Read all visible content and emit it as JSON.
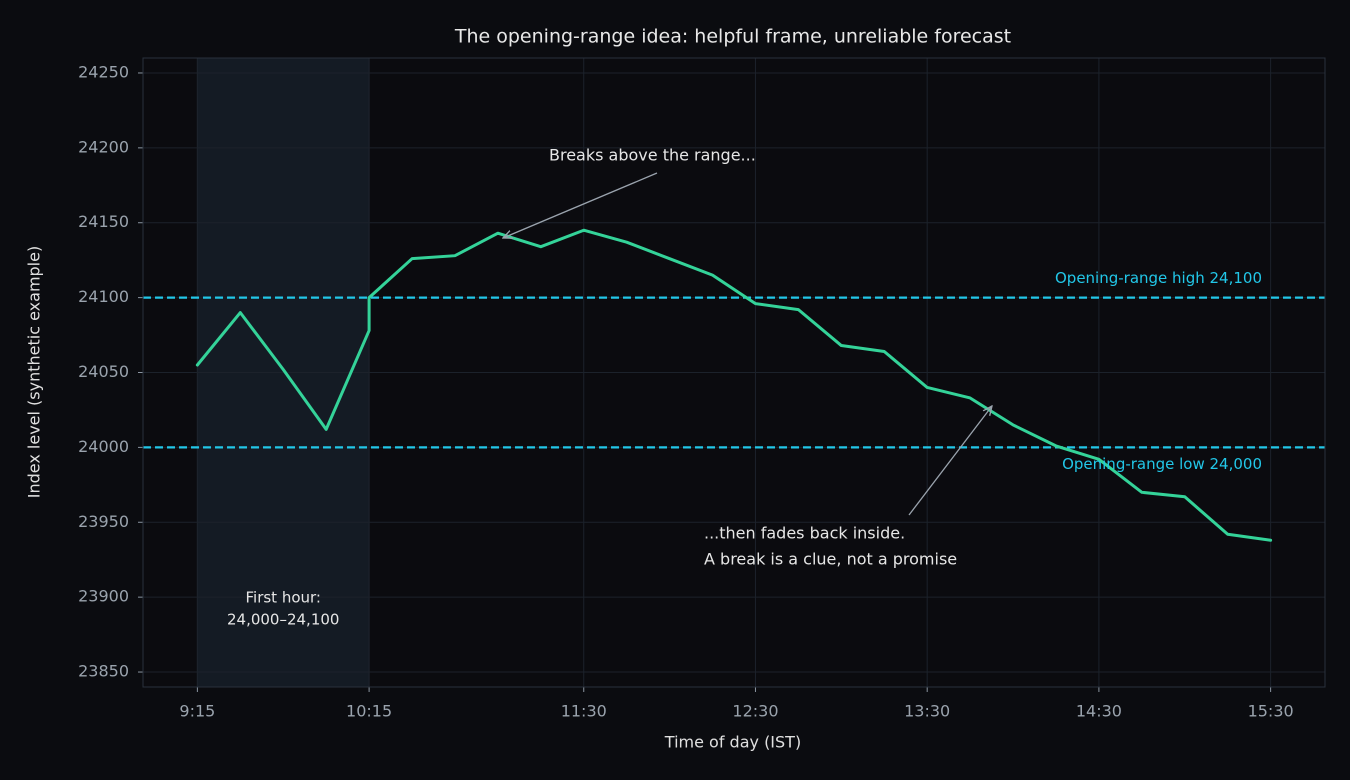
{
  "chart_data": {
    "type": "line",
    "title": "The opening-range idea: helpful frame, unreliable forecast",
    "x_label": "Time of day (IST)",
    "y_label": "Index level (synthetic example)",
    "x": [
      "9:15",
      "9:30",
      "9:45",
      "10:00",
      "10:15",
      "10:15",
      "10:30",
      "10:45",
      "11:00",
      "11:15",
      "11:30",
      "11:45",
      "12:00",
      "12:15",
      "12:30",
      "12:45",
      "13:00",
      "13:15",
      "13:30",
      "13:45",
      "14:00",
      "14:15",
      "14:30",
      "14:45",
      "15:00",
      "15:15",
      "15:30"
    ],
    "series": [
      {
        "name": "Index",
        "color": "#34d399",
        "values": [
          24055,
          24090,
          24052,
          24012,
          24078,
          24100,
          24126,
          24128,
          24143,
          24134,
          24145,
          24137,
          24126,
          24115,
          24096,
          24092,
          24068,
          24064,
          24040,
          24033,
          24015,
          24001,
          23992,
          23970,
          23967,
          23942,
          23938
        ]
      }
    ],
    "xlim": [
      "8:56",
      "15:49"
    ],
    "xticks": [
      "9:15",
      "10:15",
      "11:30",
      "12:30",
      "13:30",
      "14:30",
      "15:30"
    ],
    "ylim": [
      23840,
      24260
    ],
    "yticks": [
      23850,
      23900,
      23950,
      24000,
      24050,
      24100,
      24150,
      24200,
      24250
    ],
    "grid": true,
    "reference_lines": [
      {
        "value": 24100,
        "label": "Opening-range high 24,100",
        "color": "#22c7e8"
      },
      {
        "value": 24000,
        "label": "Opening-range low 24,000",
        "color": "#22c7e8"
      }
    ],
    "shaded_span": {
      "x": [
        "9:15",
        "10:15"
      ],
      "label": [
        "First hour:",
        "24,000–24,100"
      ]
    },
    "annotations": [
      {
        "text": [
          "Breaks above the range..."
        ]
      },
      {
        "text": [
          "...then fades back inside.",
          "A break is a clue, not a promise"
        ]
      }
    ]
  }
}
